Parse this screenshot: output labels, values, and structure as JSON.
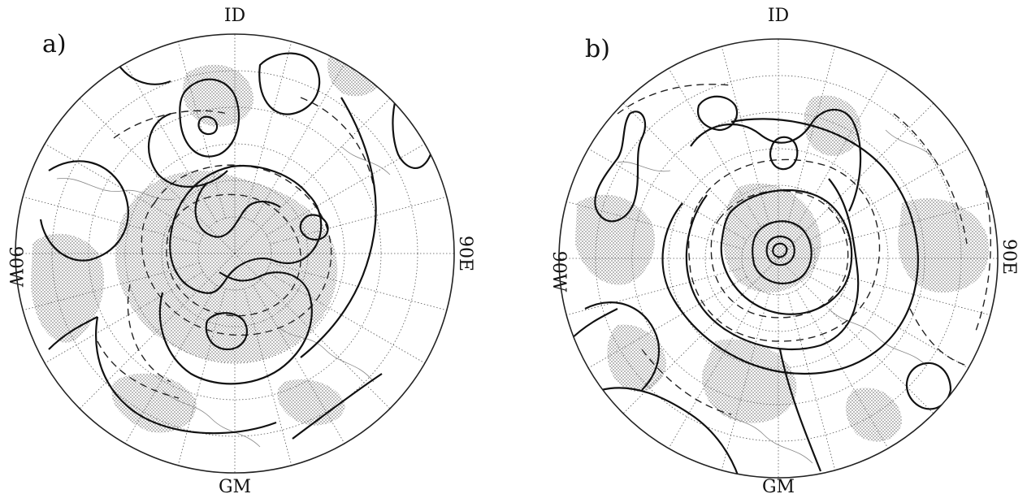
{
  "panels": [
    {
      "id": "a",
      "label": "a)",
      "lon_labels": {
        "top": "ID",
        "bottom": "GM",
        "left": "90W",
        "right": "90E"
      }
    },
    {
      "id": "b",
      "label": "b)",
      "lon_labels": {
        "top": "ID",
        "bottom": "GM",
        "left": "90W",
        "right": "90E"
      }
    }
  ],
  "projection": "polar-stereographic",
  "colors": {
    "shading": "#bdbdbd",
    "contour": "#111111",
    "grid": "#555555"
  }
}
